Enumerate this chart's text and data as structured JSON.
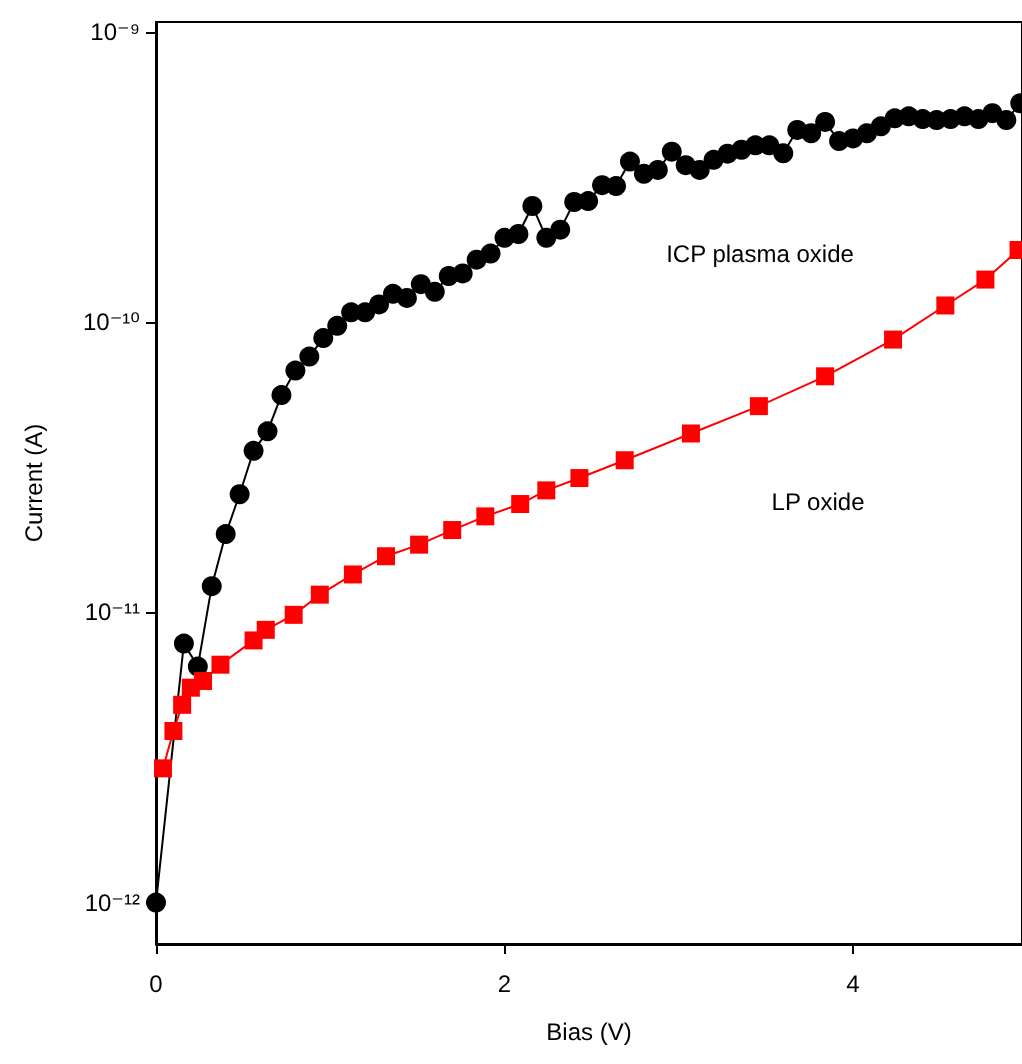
{
  "chart_data": {
    "type": "line",
    "xlabel": "Bias (V)",
    "ylabel": "Current (A)",
    "log": "y",
    "xlim": [
      0,
      4.97
    ],
    "xticks": [
      0,
      2,
      4
    ],
    "ylim": [
      7.2e-13,
      1.08e-09
    ],
    "yticks": [
      {
        "value": 1e-12,
        "label": "10⁻¹²"
      },
      {
        "value": 1e-11,
        "label": "10⁻¹¹"
      },
      {
        "value": 1e-10,
        "label": "10⁻¹⁰"
      },
      {
        "value": 1e-09,
        "label": "10⁻⁹"
      }
    ],
    "grid": false,
    "legend": false,
    "line_style": "solid",
    "annotations": [
      "LP oxide"
    ],
    "series": [
      {
        "name": "ICP plasma oxide",
        "color": "#000000",
        "marker": "circle",
        "x": [
          0,
          0.16,
          0.24,
          0.32,
          0.4,
          0.48,
          0.56,
          0.64,
          0.72,
          0.8,
          0.88,
          0.96,
          1.04,
          1.12,
          1.2,
          1.28,
          1.36,
          1.44,
          1.52,
          1.6,
          1.68,
          1.76,
          1.84,
          1.92,
          2.0,
          2.08,
          2.16,
          2.24,
          2.32,
          2.4,
          2.48,
          2.56,
          2.64,
          2.72,
          2.8,
          2.88,
          2.96,
          3.04,
          3.12,
          3.2,
          3.28,
          3.36,
          3.44,
          3.52,
          3.6,
          3.68,
          3.76,
          3.84,
          3.92,
          4.0,
          4.08,
          4.16,
          4.24,
          4.32,
          4.4,
          4.48,
          4.56,
          4.64,
          4.72,
          4.8,
          4.88,
          4.96
        ],
        "values": [
          1e-12,
          7.8e-12,
          6.5e-12,
          1.23e-11,
          1.86e-11,
          2.55e-11,
          3.6e-11,
          4.2e-11,
          5.6e-11,
          6.8e-11,
          7.6e-11,
          8.8e-11,
          9.7e-11,
          1.08e-10,
          1.08e-10,
          1.15e-10,
          1.25e-10,
          1.21e-10,
          1.35e-10,
          1.27e-10,
          1.44e-10,
          1.47e-10,
          1.64e-10,
          1.72e-10,
          1.95e-10,
          2.01e-10,
          2.51e-10,
          1.95e-10,
          2.08e-10,
          2.59e-10,
          2.61e-10,
          2.96e-10,
          2.94e-10,
          3.57e-10,
          3.24e-10,
          3.34e-10,
          3.86e-10,
          3.47e-10,
          3.34e-10,
          3.62e-10,
          3.8e-10,
          3.92e-10,
          4.06e-10,
          4.06e-10,
          3.81e-10,
          4.59e-10,
          4.47e-10,
          4.89e-10,
          4.2e-10,
          4.29e-10,
          4.47e-10,
          4.72e-10,
          5.03e-10,
          5.11e-10,
          5e-10,
          4.96e-10,
          5e-10,
          5.11e-10,
          5e-10,
          5.24e-10,
          4.96e-10,
          5.67e-10
        ]
      },
      {
        "color": "#ff0000",
        "marker": "square",
        "x": [
          0.04,
          0.1,
          0.15,
          0.2,
          0.27,
          0.37,
          0.56,
          0.63,
          0.79,
          0.94,
          1.13,
          1.32,
          1.51,
          1.7,
          1.89,
          2.09,
          2.24,
          2.43,
          2.69,
          3.07,
          3.46,
          3.84,
          4.23,
          4.53,
          4.76,
          4.95
        ],
        "values": [
          2.9e-12,
          3.9e-12,
          4.8e-12,
          5.5e-12,
          5.8e-12,
          6.6e-12,
          8e-12,
          8.7e-12,
          9.8e-12,
          1.15e-11,
          1.35e-11,
          1.56e-11,
          1.71e-11,
          1.92e-11,
          2.14e-11,
          2.36e-11,
          2.63e-11,
          2.9e-11,
          3.34e-11,
          4.13e-11,
          5.13e-11,
          6.5e-11,
          8.7e-11,
          1.14e-10,
          1.4e-10,
          1.77e-10
        ]
      }
    ]
  }
}
